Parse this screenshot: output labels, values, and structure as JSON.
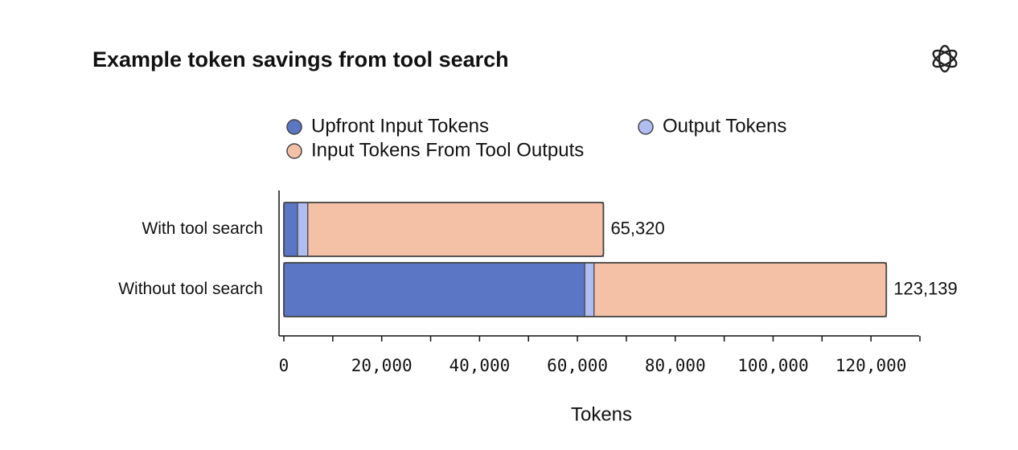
{
  "chart_data": {
    "type": "stacked-barh",
    "title": "Example token savings from tool search",
    "x_label": "Tokens",
    "categories": [
      "With tool search",
      "Without tool search"
    ],
    "series": [
      {
        "name": "Upfront Input Tokens",
        "color": "#5b76c4",
        "values": [
          2800,
          61500
        ]
      },
      {
        "name": "Output Tokens",
        "color": "#afbdf1",
        "values": [
          2100,
          1900
        ]
      },
      {
        "name": "Input Tokens From Tool Outputs",
        "color": "#f4c1a7",
        "values": [
          60420,
          59739
        ]
      }
    ],
    "totals": [
      65320,
      123139
    ],
    "total_labels": [
      "65,320",
      "123,139"
    ],
    "xlim": [
      0,
      130000
    ],
    "xticks": [
      0,
      {
        "value": 20000,
        "label": "20,000"
      },
      {
        "value": 40000,
        "label": "40,000"
      },
      {
        "value": 60000,
        "label": "60,000"
      },
      {
        "value": 80000,
        "label": "80,000"
      },
      {
        "value": 100000,
        "label": "100,000"
      },
      {
        "value": 120000,
        "label": "120,000"
      }
    ],
    "xminorticks": [
      10000,
      30000,
      50000,
      70000,
      90000,
      110000,
      130000
    ],
    "grid": false
  }
}
